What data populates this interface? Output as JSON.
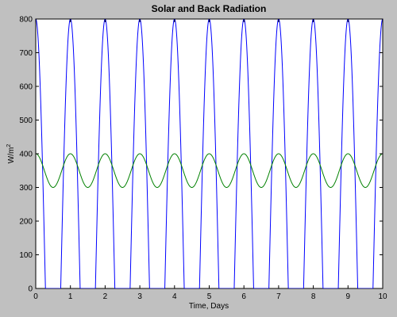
{
  "window": {
    "background": "#c0c0c0"
  },
  "chart_data": {
    "type": "line",
    "title": "Solar and Back Radiation",
    "xlabel": "Time, Days",
    "ylabel_base": "W/m",
    "ylabel_superscript": "2",
    "xlim": [
      0,
      10
    ],
    "ylim": [
      0,
      800
    ],
    "xticks": [
      0,
      1,
      2,
      3,
      4,
      5,
      6,
      7,
      8,
      9,
      10
    ],
    "yticks": [
      0,
      100,
      200,
      300,
      400,
      500,
      600,
      700,
      800
    ],
    "grid": false,
    "legend": "none",
    "series": [
      {
        "color": "#0000ff",
        "description": "clipped sinusoid, period 1 day, peak 800 at integer days, 0 from ~day+0.3 to ~day+0.7",
        "peak": 800,
        "period_days": 1,
        "peak_at_day_fraction": 0.0,
        "zero_from_fraction": 0.28,
        "zero_to_fraction": 0.72
      },
      {
        "color": "#008000",
        "description": "sinusoid, period 1 day, between 300 and 400",
        "min": 300,
        "max": 400,
        "period_days": 1,
        "peak_at_day_fraction": 0.0,
        "value_at_day_0": 400
      }
    ]
  }
}
